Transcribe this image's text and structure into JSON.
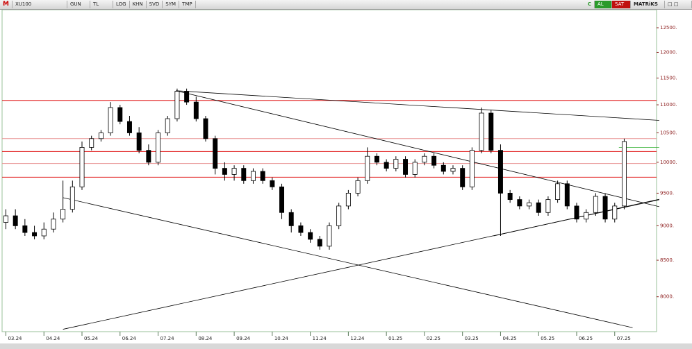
{
  "toolbar": {
    "logo": "M",
    "symbol": "XU100",
    "buttons": [
      "GUN",
      "TL",
      "LOG",
      "KHN",
      "SVD",
      "SYM",
      "TMP"
    ],
    "right_buttons": [
      "C",
      "AL",
      "SAT"
    ],
    "brand": "MATRiKS"
  },
  "chart_data": {
    "type": "candlestick",
    "log_scale": true,
    "x": [
      0,
      0.25,
      0.5,
      0.75,
      1,
      1.25,
      1.5,
      1.75,
      2,
      2.25,
      2.5,
      2.75,
      3,
      3.25,
      3.5,
      3.75,
      4,
      4.25,
      4.5,
      4.75,
      5,
      5.25,
      5.5,
      5.75,
      6,
      6.25,
      6.5,
      6.75,
      7,
      7.25,
      7.5,
      7.75,
      8,
      8.25,
      8.5,
      8.75,
      9,
      9.25,
      9.5,
      9.75,
      10,
      10.25,
      10.5,
      10.75,
      11,
      11.25,
      11.5,
      11.75,
      12,
      12.25,
      12.5,
      12.75,
      13,
      13.25,
      13.5,
      13.75,
      14,
      14.25,
      14.5,
      14.75,
      15,
      15.25,
      15.5,
      15.75,
      16,
      16.25
    ],
    "open": [
      9050,
      9150,
      9000,
      8900,
      8850,
      8950,
      9100,
      9250,
      9600,
      10250,
      10400,
      10500,
      10950,
      10700,
      10500,
      10200,
      10000,
      10500,
      10750,
      11250,
      11050,
      10750,
      10400,
      9900,
      9800,
      9900,
      9700,
      9850,
      9700,
      9600,
      9200,
      9000,
      8900,
      8800,
      8700,
      9000,
      9300,
      9500,
      9700,
      10100,
      10000,
      9900,
      10050,
      9800,
      10000,
      10100,
      9950,
      9850,
      9900,
      9600,
      10200,
      10850,
      10200,
      9500,
      9400,
      9300,
      9350,
      9200,
      9400,
      9650,
      9300,
      9100,
      9200,
      9450,
      9100,
      9300
    ],
    "high": [
      9250,
      9250,
      9100,
      9000,
      9050,
      9200,
      9700,
      9700,
      10350,
      10450,
      10550,
      11050,
      11000,
      10800,
      10600,
      10300,
      10550,
      10800,
      11300,
      11300,
      11150,
      10800,
      10450,
      10000,
      9950,
      9950,
      9900,
      9900,
      9750,
      9650,
      9250,
      9050,
      8950,
      8850,
      9050,
      9350,
      9550,
      9750,
      10250,
      10150,
      10050,
      10100,
      10100,
      10050,
      10150,
      10150,
      10000,
      9950,
      9950,
      10250,
      10950,
      10900,
      10300,
      9550,
      9450,
      9400,
      9400,
      9450,
      9700,
      9700,
      9350,
      9250,
      9500,
      9500,
      9350,
      10400
    ],
    "low": [
      8950,
      8950,
      8850,
      8800,
      8800,
      8900,
      9050,
      9200,
      9550,
      10200,
      10350,
      10450,
      10650,
      10450,
      10150,
      9950,
      9950,
      10450,
      10700,
      11000,
      10700,
      10350,
      9800,
      9700,
      9700,
      9650,
      9650,
      9650,
      9550,
      9100,
      8900,
      8850,
      8750,
      8650,
      8650,
      8950,
      9250,
      9450,
      9650,
      9950,
      9850,
      9850,
      9750,
      9750,
      9950,
      9900,
      9800,
      9800,
      9550,
      9550,
      10150,
      10150,
      8850,
      9350,
      9250,
      9250,
      9150,
      9150,
      9350,
      9250,
      9050,
      9050,
      9150,
      9050,
      9050,
      9250
    ],
    "close": [
      9150,
      9000,
      8900,
      8850,
      8950,
      9100,
      9250,
      9600,
      10250,
      10400,
      10500,
      10950,
      10700,
      10500,
      10200,
      10000,
      10500,
      10750,
      11250,
      11050,
      10750,
      10400,
      9900,
      9800,
      9900,
      9700,
      9850,
      9700,
      9600,
      9200,
      9000,
      8900,
      8800,
      8700,
      9000,
      9300,
      9500,
      9700,
      10100,
      10000,
      9900,
      10050,
      9800,
      10000,
      10100,
      9950,
      9850,
      9900,
      9600,
      10200,
      10850,
      10200,
      9500,
      9400,
      9300,
      9350,
      9200,
      9400,
      9650,
      9300,
      9100,
      9200,
      9450,
      9100,
      9300,
      10350
    ],
    "xlim": [
      -0.1,
      17.1
    ],
    "xticks": [
      {
        "value": 0,
        "label": "03.24"
      },
      {
        "value": 1,
        "label": "04.24"
      },
      {
        "value": 2,
        "label": "05.24"
      },
      {
        "value": 3,
        "label": "06.24"
      },
      {
        "value": 4,
        "label": "07.24"
      },
      {
        "value": 5,
        "label": "08.24"
      },
      {
        "value": 6,
        "label": "09.24"
      },
      {
        "value": 7,
        "label": "10.24"
      },
      {
        "value": 8,
        "label": "11.24"
      },
      {
        "value": 9,
        "label": "12.24"
      },
      {
        "value": 10,
        "label": "01.25"
      },
      {
        "value": 11,
        "label": "02.25"
      },
      {
        "value": 12,
        "label": "03.25"
      },
      {
        "value": 13,
        "label": "04.25"
      },
      {
        "value": 14,
        "label": "05.25"
      },
      {
        "value": 15,
        "label": "06.25"
      },
      {
        "value": 16,
        "label": "07.25"
      }
    ],
    "ylim": [
      7550,
      12880
    ],
    "yticks": [
      {
        "value": 8000,
        "label": "8000."
      },
      {
        "value": 8500,
        "label": "8500."
      },
      {
        "value": 9000,
        "label": "9000."
      },
      {
        "value": 9500,
        "label": "9500."
      },
      {
        "value": 10000,
        "label": "10000."
      },
      {
        "value": 10500,
        "label": "10500."
      },
      {
        "value": 11000,
        "label": "11000."
      },
      {
        "value": 11500,
        "label": "11500."
      },
      {
        "value": 12000,
        "label": "12000."
      },
      {
        "value": 12500,
        "label": "12500."
      }
    ],
    "up_color": "#ffffff",
    "down_color": "#000000",
    "hlines": [
      {
        "value": 11080,
        "color": "#e01010"
      },
      {
        "value": 10400,
        "color": "#e89090"
      },
      {
        "value": 10180,
        "color": "#e01010"
      },
      {
        "value": 9980,
        "color": "#e89090"
      },
      {
        "value": 9755,
        "color": "#e01010"
      }
    ],
    "trendlines": [
      {
        "x": [
          4.47,
          17.17
        ],
        "y": [
          11260,
          10720
        ],
        "color": "#000000"
      },
      {
        "x": [
          4.47,
          17.17
        ],
        "y": [
          11260,
          9290
        ],
        "color": "#000000"
      },
      {
        "x": [
          1.5,
          16.47
        ],
        "y": [
          9430,
          7600
        ],
        "color": "#000000"
      },
      {
        "x": [
          1.5,
          17.17
        ],
        "y": [
          7580,
          9397
        ],
        "color": "#000000"
      },
      {
        "x": [
          12.82,
          17.17
        ],
        "y": [
          8850,
          9405
        ],
        "color": "#000000"
      },
      {
        "x": [
          16.11,
          17.17
        ],
        "y": [
          10250,
          10250
        ],
        "color": "#30b030"
      }
    ]
  }
}
